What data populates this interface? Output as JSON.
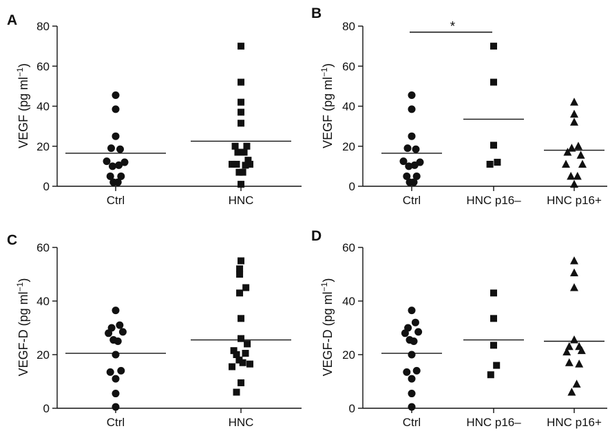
{
  "chart_data": [
    {
      "type": "scatter",
      "panel_letter": "A",
      "ylabel": "VEGF (pg ml",
      "ylabel_sup": "−1",
      "ylabel_close": ")",
      "ylim": [
        0,
        80
      ],
      "yticks": [
        "0",
        "20",
        "40",
        "60",
        "80"
      ],
      "categories": [
        "Ctrl",
        "HNC"
      ],
      "series": [
        {
          "marker": "circle",
          "means": 16.5,
          "points": [
            {
              "dx": 0,
              "y": 45.5
            },
            {
              "dx": 0,
              "y": 38.5
            },
            {
              "dx": 0,
              "y": 25
            },
            {
              "dx": -0.5,
              "y": 19
            },
            {
              "dx": 0.5,
              "y": 18.5
            },
            {
              "dx": -1,
              "y": 12.5
            },
            {
              "dx": 1,
              "y": 12
            },
            {
              "dx": -0.35,
              "y": 10
            },
            {
              "dx": 0.35,
              "y": 10.5
            },
            {
              "dx": -0.6,
              "y": 5
            },
            {
              "dx": 0.6,
              "y": 5
            },
            {
              "dx": -0.25,
              "y": 2
            },
            {
              "dx": 0.25,
              "y": 2
            }
          ]
        },
        {
          "marker": "square",
          "means": 22.5,
          "points": [
            {
              "dx": 0,
              "y": 70
            },
            {
              "dx": 0,
              "y": 52
            },
            {
              "dx": 0,
              "y": 42
            },
            {
              "dx": 0,
              "y": 37
            },
            {
              "dx": 0,
              "y": 31.5
            },
            {
              "dx": -0.65,
              "y": 20
            },
            {
              "dx": 0.65,
              "y": 20
            },
            {
              "dx": -0.35,
              "y": 17
            },
            {
              "dx": 0.35,
              "y": 17
            },
            {
              "dx": -1,
              "y": 11
            },
            {
              "dx": -0.5,
              "y": 11
            },
            {
              "dx": 0.5,
              "y": 10.5
            },
            {
              "dx": 1,
              "y": 11
            },
            {
              "dx": 0.8,
              "y": 13
            },
            {
              "dx": -0.2,
              "y": 7
            },
            {
              "dx": 0.2,
              "y": 7
            },
            {
              "dx": 0,
              "y": 1
            }
          ]
        }
      ],
      "significance": null
    },
    {
      "type": "scatter",
      "panel_letter": "B",
      "ylabel": "VEGF (pg ml",
      "ylabel_sup": "−1",
      "ylabel_close": ")",
      "ylim": [
        0,
        80
      ],
      "yticks": [
        "0",
        "20",
        "40",
        "60",
        "80"
      ],
      "categories": [
        "Ctrl",
        "HNC p16–",
        "HNC p16+"
      ],
      "series": [
        {
          "marker": "circle",
          "means": 16.5,
          "points": [
            {
              "dx": 0,
              "y": 45.5
            },
            {
              "dx": 0,
              "y": 38.5
            },
            {
              "dx": 0,
              "y": 25
            },
            {
              "dx": -0.5,
              "y": 19
            },
            {
              "dx": 0.5,
              "y": 18.5
            },
            {
              "dx": -1,
              "y": 12.5
            },
            {
              "dx": 1,
              "y": 12
            },
            {
              "dx": -0.35,
              "y": 10
            },
            {
              "dx": 0.35,
              "y": 10.5
            },
            {
              "dx": -0.6,
              "y": 5
            },
            {
              "dx": 0.6,
              "y": 5
            },
            {
              "dx": -0.25,
              "y": 2
            },
            {
              "dx": 0.25,
              "y": 2
            }
          ]
        },
        {
          "marker": "square",
          "means": 33.5,
          "points": [
            {
              "dx": 0,
              "y": 70
            },
            {
              "dx": 0,
              "y": 52
            },
            {
              "dx": 0,
              "y": 20.5
            },
            {
              "dx": -0.45,
              "y": 11
            },
            {
              "dx": 0.45,
              "y": 12
            }
          ]
        },
        {
          "marker": "triangle",
          "means": 18,
          "points": [
            {
              "dx": 0,
              "y": 42
            },
            {
              "dx": 0,
              "y": 36
            },
            {
              "dx": 0,
              "y": 32
            },
            {
              "dx": 0.5,
              "y": 20
            },
            {
              "dx": -0.3,
              "y": 19
            },
            {
              "dx": -0.8,
              "y": 17
            },
            {
              "dx": 0.8,
              "y": 15.5
            },
            {
              "dx": -1,
              "y": 11
            },
            {
              "dx": 1,
              "y": 11
            },
            {
              "dx": -0.4,
              "y": 5
            },
            {
              "dx": 0.4,
              "y": 5
            },
            {
              "dx": 0,
              "y": 1
            }
          ]
        }
      ],
      "significance": {
        "from": 0,
        "to": 1,
        "y": 77,
        "label": "*"
      }
    },
    {
      "type": "scatter",
      "panel_letter": "C",
      "ylabel": "VEGF-D (pg ml",
      "ylabel_sup": "−1",
      "ylabel_close": ")",
      "ylim": [
        0,
        60
      ],
      "yticks": [
        "0",
        "20",
        "40",
        "60"
      ],
      "categories": [
        "Ctrl",
        "HNC"
      ],
      "series": [
        {
          "marker": "circle",
          "means": 20.5,
          "points": [
            {
              "dx": 0,
              "y": 36.5
            },
            {
              "dx": -0.45,
              "y": 30
            },
            {
              "dx": 0.45,
              "y": 31
            },
            {
              "dx": -0.8,
              "y": 28
            },
            {
              "dx": 0.8,
              "y": 28.5
            },
            {
              "dx": -0.25,
              "y": 25.5
            },
            {
              "dx": 0.25,
              "y": 25
            },
            {
              "dx": 0,
              "y": 20
            },
            {
              "dx": -0.6,
              "y": 13.5
            },
            {
              "dx": 0.6,
              "y": 14
            },
            {
              "dx": 0,
              "y": 11
            },
            {
              "dx": 0,
              "y": 5.5
            },
            {
              "dx": 0,
              "y": 0.5
            }
          ]
        },
        {
          "marker": "square",
          "means": 25.5,
          "points": [
            {
              "dx": 0,
              "y": 55
            },
            {
              "dx": -0.15,
              "y": 52
            },
            {
              "dx": -0.15,
              "y": 50
            },
            {
              "dx": 0.55,
              "y": 45
            },
            {
              "dx": -0.15,
              "y": 43
            },
            {
              "dx": 0,
              "y": 33.5
            },
            {
              "dx": 0,
              "y": 26
            },
            {
              "dx": 0.7,
              "y": 24
            },
            {
              "dx": -0.8,
              "y": 21.5
            },
            {
              "dx": -0.5,
              "y": 20
            },
            {
              "dx": 0.5,
              "y": 20.5
            },
            {
              "dx": -0.2,
              "y": 18
            },
            {
              "dx": 0.2,
              "y": 17
            },
            {
              "dx": 1,
              "y": 16.5
            },
            {
              "dx": -1,
              "y": 15.5
            },
            {
              "dx": 0,
              "y": 9.5
            },
            {
              "dx": -0.5,
              "y": 6
            }
          ]
        }
      ],
      "significance": null
    },
    {
      "type": "scatter",
      "panel_letter": "D",
      "ylabel": "VEGF-D (pg ml",
      "ylabel_sup": "−1",
      "ylabel_close": ")",
      "ylim": [
        0,
        60
      ],
      "yticks": [
        "0",
        "20",
        "40",
        "60"
      ],
      "categories": [
        "Ctrl",
        "HNC p16–",
        "HNC p16+"
      ],
      "series": [
        {
          "marker": "circle",
          "means": 20.5,
          "points": [
            {
              "dx": 0,
              "y": 36.5
            },
            {
              "dx": -0.45,
              "y": 30
            },
            {
              "dx": 0.45,
              "y": 32
            },
            {
              "dx": -0.8,
              "y": 28
            },
            {
              "dx": 0.8,
              "y": 28.5
            },
            {
              "dx": -0.25,
              "y": 25.5
            },
            {
              "dx": 0.25,
              "y": 25
            },
            {
              "dx": 0,
              "y": 20
            },
            {
              "dx": -0.6,
              "y": 13.5
            },
            {
              "dx": 0.6,
              "y": 14
            },
            {
              "dx": 0,
              "y": 11
            },
            {
              "dx": 0,
              "y": 5.5
            },
            {
              "dx": 0,
              "y": 0.5
            }
          ]
        },
        {
          "marker": "square",
          "means": 25.5,
          "points": [
            {
              "dx": 0,
              "y": 43
            },
            {
              "dx": 0,
              "y": 33.5
            },
            {
              "dx": 0,
              "y": 23.5
            },
            {
              "dx": 0.35,
              "y": 16
            },
            {
              "dx": -0.35,
              "y": 12.5
            }
          ]
        },
        {
          "marker": "triangle",
          "means": 25,
          "points": [
            {
              "dx": 0,
              "y": 55
            },
            {
              "dx": 0,
              "y": 50.5
            },
            {
              "dx": 0,
              "y": 45
            },
            {
              "dx": 0,
              "y": 25.5
            },
            {
              "dx": -0.6,
              "y": 23
            },
            {
              "dx": 0.6,
              "y": 23
            },
            {
              "dx": -0.9,
              "y": 21
            },
            {
              "dx": 0.9,
              "y": 21.5
            },
            {
              "dx": -0.6,
              "y": 17
            },
            {
              "dx": 0.6,
              "y": 16.5
            },
            {
              "dx": 0.3,
              "y": 9
            },
            {
              "dx": -0.3,
              "y": 6
            }
          ]
        }
      ],
      "significance": null
    }
  ]
}
